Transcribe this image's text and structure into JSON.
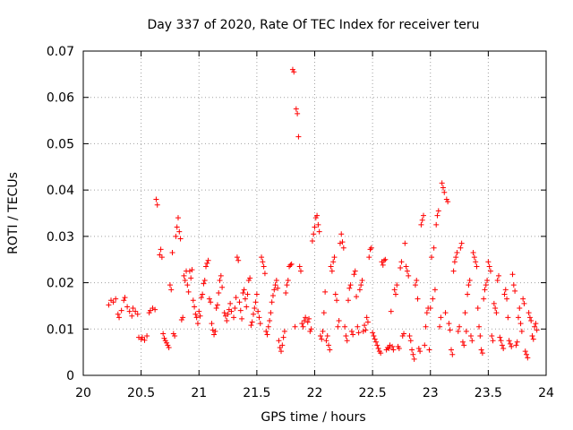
{
  "chart_data": {
    "type": "scatter",
    "title": "Day 337 of 2020, Rate Of TEC Index for receiver teru",
    "xlabel": "GPS time / hours",
    "ylabel": "ROTI / TECUs",
    "xlim": [
      20,
      24
    ],
    "ylim": [
      0,
      0.07
    ],
    "x_ticks": [
      20,
      20.5,
      21,
      21.5,
      22,
      22.5,
      23,
      23.5,
      24
    ],
    "x_tick_labels": [
      "20",
      "20.5",
      "21",
      "21.5",
      "22",
      "22.5",
      "23",
      "23.5",
      "24"
    ],
    "y_ticks": [
      0,
      0.01,
      0.02,
      0.03,
      0.04,
      0.05,
      0.06,
      0.07
    ],
    "y_tick_labels": [
      "0",
      "0.01",
      "0.02",
      "0.03",
      "0.04",
      "0.05",
      "0.06",
      "0.07"
    ],
    "grid": true,
    "marker": "plus",
    "color": "#ff0000",
    "points": [
      [
        20.22,
        0.0152
      ],
      [
        20.24,
        0.0162
      ],
      [
        20.26,
        0.0158
      ],
      [
        20.28,
        0.0165
      ],
      [
        20.3,
        0.0132
      ],
      [
        20.31,
        0.0125
      ],
      [
        20.33,
        0.014
      ],
      [
        20.35,
        0.0162
      ],
      [
        20.36,
        0.0168
      ],
      [
        20.38,
        0.0148
      ],
      [
        20.4,
        0.0138
      ],
      [
        20.42,
        0.0128
      ],
      [
        20.43,
        0.0145
      ],
      [
        20.45,
        0.0138
      ],
      [
        20.47,
        0.0132
      ],
      [
        20.48,
        0.0082
      ],
      [
        20.5,
        0.0078
      ],
      [
        20.51,
        0.0082
      ],
      [
        20.53,
        0.0076
      ],
      [
        20.55,
        0.0085
      ],
      [
        20.57,
        0.0135
      ],
      [
        20.58,
        0.014
      ],
      [
        20.6,
        0.0145
      ],
      [
        20.62,
        0.0142
      ],
      [
        20.63,
        0.038
      ],
      [
        20.64,
        0.0368
      ],
      [
        20.66,
        0.026
      ],
      [
        20.67,
        0.0272
      ],
      [
        20.68,
        0.0255
      ],
      [
        20.69,
        0.009
      ],
      [
        20.7,
        0.008
      ],
      [
        20.71,
        0.0075
      ],
      [
        20.72,
        0.007
      ],
      [
        20.73,
        0.0065
      ],
      [
        20.74,
        0.006
      ],
      [
        20.75,
        0.0195
      ],
      [
        20.76,
        0.0185
      ],
      [
        20.77,
        0.0265
      ],
      [
        20.78,
        0.009
      ],
      [
        20.79,
        0.0085
      ],
      [
        20.8,
        0.03
      ],
      [
        20.81,
        0.032
      ],
      [
        20.82,
        0.034
      ],
      [
        20.83,
        0.031
      ],
      [
        20.84,
        0.0295
      ],
      [
        20.85,
        0.012
      ],
      [
        20.86,
        0.0125
      ],
      [
        20.87,
        0.0215
      ],
      [
        20.88,
        0.0205
      ],
      [
        20.89,
        0.0225
      ],
      [
        20.9,
        0.0195
      ],
      [
        20.91,
        0.018
      ],
      [
        20.92,
        0.0225
      ],
      [
        20.93,
        0.021
      ],
      [
        20.94,
        0.0228
      ],
      [
        20.95,
        0.0162
      ],
      [
        20.96,
        0.0148
      ],
      [
        20.97,
        0.0132
      ],
      [
        20.98,
        0.0125
      ],
      [
        20.99,
        0.0112
      ],
      [
        21.0,
        0.0138
      ],
      [
        21.01,
        0.0128
      ],
      [
        21.02,
        0.0168
      ],
      [
        21.03,
        0.0175
      ],
      [
        21.04,
        0.0198
      ],
      [
        21.05,
        0.0205
      ],
      [
        21.06,
        0.0235
      ],
      [
        21.07,
        0.0242
      ],
      [
        21.08,
        0.0248
      ],
      [
        21.09,
        0.0165
      ],
      [
        21.1,
        0.0158
      ],
      [
        21.11,
        0.0112
      ],
      [
        21.12,
        0.0098
      ],
      [
        21.13,
        0.0088
      ],
      [
        21.14,
        0.0095
      ],
      [
        21.15,
        0.0145
      ],
      [
        21.16,
        0.0152
      ],
      [
        21.17,
        0.0178
      ],
      [
        21.18,
        0.0205
      ],
      [
        21.19,
        0.0215
      ],
      [
        21.2,
        0.019
      ],
      [
        21.22,
        0.0135
      ],
      [
        21.23,
        0.0128
      ],
      [
        21.24,
        0.0118
      ],
      [
        21.25,
        0.0132
      ],
      [
        21.26,
        0.0142
      ],
      [
        21.27,
        0.0155
      ],
      [
        21.28,
        0.0138
      ],
      [
        21.3,
        0.0125
      ],
      [
        21.31,
        0.0145
      ],
      [
        21.32,
        0.0168
      ],
      [
        21.33,
        0.0255
      ],
      [
        21.34,
        0.0248
      ],
      [
        21.35,
        0.0158
      ],
      [
        21.36,
        0.014
      ],
      [
        21.37,
        0.0122
      ],
      [
        21.38,
        0.0178
      ],
      [
        21.39,
        0.0185
      ],
      [
        21.4,
        0.0165
      ],
      [
        21.41,
        0.0148
      ],
      [
        21.42,
        0.0175
      ],
      [
        21.43,
        0.0205
      ],
      [
        21.44,
        0.021
      ],
      [
        21.45,
        0.0108
      ],
      [
        21.46,
        0.0115
      ],
      [
        21.47,
        0.0132
      ],
      [
        21.48,
        0.0145
      ],
      [
        21.49,
        0.0158
      ],
      [
        21.5,
        0.0175
      ],
      [
        21.51,
        0.0138
      ],
      [
        21.52,
        0.0125
      ],
      [
        21.53,
        0.0112
      ],
      [
        21.54,
        0.0255
      ],
      [
        21.55,
        0.0245
      ],
      [
        21.56,
        0.0235
      ],
      [
        21.57,
        0.022
      ],
      [
        21.58,
        0.0095
      ],
      [
        21.59,
        0.0088
      ],
      [
        21.6,
        0.0105
      ],
      [
        21.61,
        0.0118
      ],
      [
        21.62,
        0.0135
      ],
      [
        21.63,
        0.0158
      ],
      [
        21.64,
        0.0172
      ],
      [
        21.65,
        0.0185
      ],
      [
        21.66,
        0.0195
      ],
      [
        21.67,
        0.0205
      ],
      [
        21.68,
        0.0188
      ],
      [
        21.69,
        0.0075
      ],
      [
        21.7,
        0.006
      ],
      [
        21.71,
        0.0052
      ],
      [
        21.72,
        0.0065
      ],
      [
        21.73,
        0.0082
      ],
      [
        21.74,
        0.0095
      ],
      [
        21.75,
        0.0178
      ],
      [
        21.76,
        0.0195
      ],
      [
        21.77,
        0.0205
      ],
      [
        21.78,
        0.0235
      ],
      [
        21.79,
        0.0238
      ],
      [
        21.8,
        0.024
      ],
      [
        21.81,
        0.066
      ],
      [
        21.82,
        0.0655
      ],
      [
        21.83,
        0.0105
      ],
      [
        21.84,
        0.0575
      ],
      [
        21.85,
        0.0565
      ],
      [
        21.86,
        0.0515
      ],
      [
        21.87,
        0.0235
      ],
      [
        21.88,
        0.0225
      ],
      [
        21.89,
        0.0112
      ],
      [
        21.9,
        0.0105
      ],
      [
        21.91,
        0.0118
      ],
      [
        21.92,
        0.0125
      ],
      [
        21.94,
        0.0115
      ],
      [
        21.95,
        0.0122
      ],
      [
        21.96,
        0.0095
      ],
      [
        21.97,
        0.01
      ],
      [
        21.98,
        0.029
      ],
      [
        21.99,
        0.0305
      ],
      [
        22.0,
        0.032
      ],
      [
        22.01,
        0.034
      ],
      [
        22.02,
        0.0345
      ],
      [
        22.03,
        0.0325
      ],
      [
        22.04,
        0.031
      ],
      [
        22.05,
        0.0085
      ],
      [
        22.06,
        0.0078
      ],
      [
        22.07,
        0.0095
      ],
      [
        22.08,
        0.0135
      ],
      [
        22.09,
        0.018
      ],
      [
        22.1,
        0.0075
      ],
      [
        22.11,
        0.0085
      ],
      [
        22.12,
        0.0065
      ],
      [
        22.13,
        0.0055
      ],
      [
        22.14,
        0.0235
      ],
      [
        22.15,
        0.0225
      ],
      [
        22.16,
        0.0245
      ],
      [
        22.17,
        0.0255
      ],
      [
        22.18,
        0.0175
      ],
      [
        22.19,
        0.0162
      ],
      [
        22.2,
        0.0105
      ],
      [
        22.21,
        0.0118
      ],
      [
        22.22,
        0.0285
      ],
      [
        22.23,
        0.0305
      ],
      [
        22.24,
        0.0288
      ],
      [
        22.25,
        0.0275
      ],
      [
        22.26,
        0.0105
      ],
      [
        22.27,
        0.0085
      ],
      [
        22.28,
        0.0075
      ],
      [
        22.29,
        0.0162
      ],
      [
        22.3,
        0.0188
      ],
      [
        22.31,
        0.0195
      ],
      [
        22.32,
        0.0095
      ],
      [
        22.33,
        0.0088
      ],
      [
        22.34,
        0.0218
      ],
      [
        22.35,
        0.0225
      ],
      [
        22.36,
        0.017
      ],
      [
        22.37,
        0.0105
      ],
      [
        22.38,
        0.0092
      ],
      [
        22.39,
        0.0185
      ],
      [
        22.4,
        0.0195
      ],
      [
        22.41,
        0.0205
      ],
      [
        22.42,
        0.0095
      ],
      [
        22.43,
        0.0108
      ],
      [
        22.44,
        0.0098
      ],
      [
        22.45,
        0.0125
      ],
      [
        22.46,
        0.0115
      ],
      [
        22.47,
        0.0255
      ],
      [
        22.48,
        0.0272
      ],
      [
        22.49,
        0.0275
      ],
      [
        22.5,
        0.0092
      ],
      [
        22.51,
        0.0085
      ],
      [
        22.52,
        0.0078
      ],
      [
        22.53,
        0.0072
      ],
      [
        22.54,
        0.0065
      ],
      [
        22.55,
        0.0058
      ],
      [
        22.56,
        0.0052
      ],
      [
        22.57,
        0.0048
      ],
      [
        22.58,
        0.0245
      ],
      [
        22.59,
        0.0238
      ],
      [
        22.6,
        0.0248
      ],
      [
        22.61,
        0.025
      ],
      [
        22.62,
        0.0055
      ],
      [
        22.63,
        0.006
      ],
      [
        22.64,
        0.0058
      ],
      [
        22.65,
        0.0065
      ],
      [
        22.66,
        0.0138
      ],
      [
        22.67,
        0.0062
      ],
      [
        22.68,
        0.0055
      ],
      [
        22.69,
        0.0185
      ],
      [
        22.7,
        0.0175
      ],
      [
        22.71,
        0.0195
      ],
      [
        22.72,
        0.0062
      ],
      [
        22.73,
        0.0058
      ],
      [
        22.74,
        0.0232
      ],
      [
        22.75,
        0.0245
      ],
      [
        22.76,
        0.0085
      ],
      [
        22.77,
        0.009
      ],
      [
        22.78,
        0.0285
      ],
      [
        22.79,
        0.0235
      ],
      [
        22.8,
        0.0225
      ],
      [
        22.81,
        0.0215
      ],
      [
        22.82,
        0.0085
      ],
      [
        22.83,
        0.0075
      ],
      [
        22.84,
        0.0055
      ],
      [
        22.85,
        0.0045
      ],
      [
        22.86,
        0.0035
      ],
      [
        22.87,
        0.0195
      ],
      [
        22.88,
        0.0205
      ],
      [
        22.89,
        0.0165
      ],
      [
        22.9,
        0.0058
      ],
      [
        22.91,
        0.0052
      ],
      [
        22.92,
        0.0325
      ],
      [
        22.93,
        0.0335
      ],
      [
        22.94,
        0.0345
      ],
      [
        22.95,
        0.0065
      ],
      [
        22.96,
        0.0105
      ],
      [
        22.97,
        0.0135
      ],
      [
        22.98,
        0.0145
      ],
      [
        22.99,
        0.0055
      ],
      [
        23.0,
        0.0145
      ],
      [
        23.01,
        0.0255
      ],
      [
        23.02,
        0.0165
      ],
      [
        23.03,
        0.0275
      ],
      [
        23.04,
        0.0185
      ],
      [
        23.05,
        0.0325
      ],
      [
        23.06,
        0.0345
      ],
      [
        23.07,
        0.0355
      ],
      [
        23.08,
        0.0105
      ],
      [
        23.09,
        0.0125
      ],
      [
        23.1,
        0.0415
      ],
      [
        23.11,
        0.0405
      ],
      [
        23.12,
        0.0395
      ],
      [
        23.13,
        0.0135
      ],
      [
        23.14,
        0.038
      ],
      [
        23.15,
        0.0375
      ],
      [
        23.16,
        0.0112
      ],
      [
        23.17,
        0.0098
      ],
      [
        23.18,
        0.0055
      ],
      [
        23.19,
        0.0045
      ],
      [
        23.2,
        0.0225
      ],
      [
        23.21,
        0.0245
      ],
      [
        23.22,
        0.0255
      ],
      [
        23.23,
        0.0265
      ],
      [
        23.24,
        0.0095
      ],
      [
        23.25,
        0.0105
      ],
      [
        23.26,
        0.0275
      ],
      [
        23.27,
        0.0285
      ],
      [
        23.28,
        0.0072
      ],
      [
        23.29,
        0.0065
      ],
      [
        23.3,
        0.0135
      ],
      [
        23.31,
        0.0095
      ],
      [
        23.32,
        0.0175
      ],
      [
        23.33,
        0.0195
      ],
      [
        23.34,
        0.0205
      ],
      [
        23.35,
        0.0085
      ],
      [
        23.36,
        0.0075
      ],
      [
        23.37,
        0.0265
      ],
      [
        23.38,
        0.0255
      ],
      [
        23.39,
        0.0245
      ],
      [
        23.4,
        0.0235
      ],
      [
        23.41,
        0.0145
      ],
      [
        23.42,
        0.0105
      ],
      [
        23.43,
        0.0085
      ],
      [
        23.44,
        0.0055
      ],
      [
        23.45,
        0.0048
      ],
      [
        23.46,
        0.0165
      ],
      [
        23.47,
        0.0185
      ],
      [
        23.48,
        0.0195
      ],
      [
        23.49,
        0.0205
      ],
      [
        23.5,
        0.0245
      ],
      [
        23.51,
        0.0235
      ],
      [
        23.52,
        0.0225
      ],
      [
        23.53,
        0.0085
      ],
      [
        23.54,
        0.0075
      ],
      [
        23.55,
        0.0155
      ],
      [
        23.56,
        0.0145
      ],
      [
        23.57,
        0.0135
      ],
      [
        23.58,
        0.0205
      ],
      [
        23.59,
        0.0215
      ],
      [
        23.6,
        0.0082
      ],
      [
        23.61,
        0.0075
      ],
      [
        23.62,
        0.0065
      ],
      [
        23.63,
        0.0058
      ],
      [
        23.64,
        0.0175
      ],
      [
        23.65,
        0.0185
      ],
      [
        23.66,
        0.0165
      ],
      [
        23.67,
        0.0125
      ],
      [
        23.68,
        0.0075
      ],
      [
        23.69,
        0.0068
      ],
      [
        23.7,
        0.0062
      ],
      [
        23.71,
        0.0218
      ],
      [
        23.72,
        0.0195
      ],
      [
        23.73,
        0.0182
      ],
      [
        23.74,
        0.0065
      ],
      [
        23.75,
        0.0072
      ],
      [
        23.76,
        0.0125
      ],
      [
        23.77,
        0.0145
      ],
      [
        23.78,
        0.0112
      ],
      [
        23.79,
        0.0095
      ],
      [
        23.8,
        0.0165
      ],
      [
        23.81,
        0.0155
      ],
      [
        23.82,
        0.0052
      ],
      [
        23.83,
        0.0045
      ],
      [
        23.84,
        0.0038
      ],
      [
        23.85,
        0.0135
      ],
      [
        23.86,
        0.0125
      ],
      [
        23.87,
        0.0118
      ],
      [
        23.88,
        0.0085
      ],
      [
        23.89,
        0.0078
      ],
      [
        23.9,
        0.0105
      ],
      [
        23.91,
        0.0112
      ],
      [
        23.92,
        0.0098
      ]
    ]
  }
}
